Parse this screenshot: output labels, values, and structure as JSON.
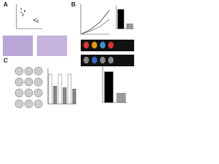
{
  "panels": [
    {
      "label": "A",
      "charts": [
        {
          "type": "dot",
          "color": "#333",
          "ylim": [
            0,
            1.5
          ],
          "series": [
            {
              "values": [
                1.0,
                0.9,
                1.1,
                1.2,
                0.8,
                1.05
              ]
            },
            {
              "values": [
                0.5,
                0.6,
                0.4,
                0.55,
                0.45,
                0.5
              ]
            }
          ]
        }
      ]
    },
    {
      "label": "B",
      "charts": [
        {
          "type": "line",
          "ylim": [
            0,
            2
          ],
          "series": [
            {
              "color": "#222",
              "values": [
                0,
                0.3,
                0.8,
                1.6
              ]
            },
            {
              "color": "#777",
              "values": [
                0,
                0.2,
                0.5,
                1.0
              ]
            }
          ]
        },
        {
          "type": "bar",
          "ylim": [
            0,
            1.2
          ],
          "values": [
            1.0,
            0.25
          ],
          "colors": [
            "#000",
            "#999"
          ]
        }
      ]
    },
    {
      "label": "C",
      "charts": [
        {
          "type": "bar",
          "ylim": [
            0,
            1.2
          ],
          "values": [
            1.0,
            0.6,
            1.0,
            0.55,
            1.0,
            0.5
          ],
          "colors": [
            "#fff",
            "#888",
            "#fff",
            "#888",
            "#fff",
            "#888"
          ]
        },
        {
          "type": "bar",
          "ylim": [
            0,
            1.2
          ],
          "values": [
            1.0,
            0.3
          ],
          "colors": [
            "#000",
            "#999"
          ]
        }
      ]
    }
  ]
}
